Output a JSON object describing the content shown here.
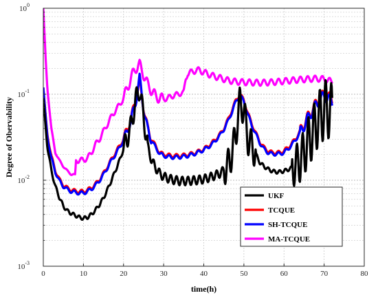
{
  "chart_data": {
    "type": "line",
    "title": "",
    "xlabel": "time(h)",
    "ylabel": "Degree of Obervability",
    "xlim": [
      0,
      80
    ],
    "ylim": [
      0.001,
      1
    ],
    "y_scale": "log",
    "grid": true,
    "legend_position": "bottom-right",
    "x_ticks": [
      0,
      10,
      20,
      30,
      40,
      50,
      60,
      70,
      80
    ],
    "x_tick_labels": [
      "0",
      "10",
      "20",
      "30",
      "40",
      "50",
      "60",
      "70",
      "80"
    ],
    "y_ticks": [
      1,
      0.1,
      0.01,
      0.001
    ],
    "y_tick_labels": [
      {
        "base": "10",
        "exp": "0"
      },
      {
        "base": "10",
        "exp": "-1"
      },
      {
        "base": "10",
        "exp": "-2"
      },
      {
        "base": "10",
        "exp": "-3"
      }
    ],
    "series": [
      {
        "name": "UKF",
        "color": "#000000",
        "width": 3.2,
        "x": [
          0,
          0.5,
          1,
          2,
          3,
          4,
          5,
          6,
          7,
          8,
          9,
          10,
          11,
          12,
          13,
          14,
          15,
          16,
          17,
          18,
          19,
          20,
          21,
          22,
          23,
          24,
          25,
          26,
          27,
          28,
          29,
          30,
          32,
          34,
          36,
          38,
          40,
          42,
          44,
          45,
          46,
          47,
          48,
          49,
          50,
          51,
          52,
          53,
          54,
          55,
          56,
          57,
          58,
          59,
          60,
          61,
          62,
          63,
          64,
          65,
          66,
          67,
          68,
          69,
          70,
          71,
          72
        ],
        "y": [
          0.09,
          0.045,
          0.025,
          0.013,
          0.0085,
          0.0063,
          0.005,
          0.0044,
          0.0041,
          0.0039,
          0.0037,
          0.0036,
          0.0037,
          0.004,
          0.0045,
          0.0052,
          0.0062,
          0.0078,
          0.01,
          0.013,
          0.017,
          0.023,
          0.032,
          0.045,
          0.085,
          0.115,
          0.055,
          0.025,
          0.017,
          0.014,
          0.012,
          0.011,
          0.0102,
          0.0098,
          0.0098,
          0.01,
          0.0103,
          0.011,
          0.012,
          0.013,
          0.015,
          0.02,
          0.035,
          0.082,
          0.065,
          0.03,
          0.025,
          0.02,
          0.016,
          0.0145,
          0.0135,
          0.0128,
          0.0125,
          0.0125,
          0.0128,
          0.0133,
          0.014,
          0.015,
          0.017,
          0.021,
          0.028,
          0.034,
          0.045,
          0.055,
          0.065,
          0.07,
          0.055
        ]
      },
      {
        "name": "TCQUE",
        "color": "#ff0000",
        "width": 3.2,
        "x": [
          0,
          0.5,
          1,
          2,
          3,
          4,
          5,
          6,
          7,
          8,
          9,
          10,
          11,
          12,
          13,
          14,
          15,
          16,
          17,
          18,
          19,
          20,
          21,
          22,
          23,
          24,
          25,
          26,
          27,
          28,
          29,
          30,
          32,
          34,
          36,
          38,
          40,
          42,
          44,
          45,
          46,
          47,
          48,
          49,
          50,
          51,
          52,
          53,
          54,
          55,
          56,
          57,
          58,
          59,
          60,
          61,
          62,
          63,
          64,
          65,
          66,
          67,
          68,
          69,
          70,
          71,
          72
        ],
        "y": [
          0.12,
          0.06,
          0.035,
          0.019,
          0.013,
          0.0102,
          0.0088,
          0.0081,
          0.0077,
          0.0075,
          0.0074,
          0.0074,
          0.0077,
          0.0082,
          0.009,
          0.0102,
          0.012,
          0.0145,
          0.0175,
          0.021,
          0.025,
          0.03,
          0.04,
          0.055,
          0.085,
          0.14,
          0.07,
          0.04,
          0.03,
          0.025,
          0.021,
          0.02,
          0.0193,
          0.0193,
          0.0198,
          0.021,
          0.023,
          0.027,
          0.034,
          0.04,
          0.05,
          0.065,
          0.085,
          0.1,
          0.085,
          0.06,
          0.045,
          0.035,
          0.028,
          0.024,
          0.022,
          0.021,
          0.021,
          0.021,
          0.022,
          0.024,
          0.027,
          0.031,
          0.037,
          0.045,
          0.055,
          0.065,
          0.078,
          0.09,
          0.1,
          0.095,
          0.085
        ]
      },
      {
        "name": "SH-TCQUE",
        "color": "#0000ff",
        "width": 3.2,
        "x": [
          0,
          0.5,
          1,
          2,
          3,
          4,
          5,
          6,
          7,
          8,
          9,
          10,
          11,
          12,
          13,
          14,
          15,
          16,
          17,
          18,
          19,
          20,
          21,
          22,
          23,
          24,
          25,
          26,
          27,
          28,
          29,
          30,
          32,
          34,
          36,
          38,
          40,
          42,
          44,
          45,
          46,
          47,
          48,
          49,
          50,
          51,
          52,
          53,
          54,
          55,
          56,
          57,
          58,
          59,
          60,
          61,
          62,
          63,
          64,
          65,
          66,
          67,
          68,
          69,
          70,
          71,
          72
        ],
        "y": [
          0.12,
          0.058,
          0.033,
          0.018,
          0.0125,
          0.0098,
          0.0085,
          0.0078,
          0.0074,
          0.0072,
          0.0071,
          0.0071,
          0.0074,
          0.0079,
          0.0087,
          0.0099,
          0.0116,
          0.014,
          0.017,
          0.02,
          0.024,
          0.029,
          0.038,
          0.053,
          0.08,
          0.155,
          0.068,
          0.039,
          0.029,
          0.024,
          0.0205,
          0.0192,
          0.0185,
          0.0186,
          0.0192,
          0.0205,
          0.0225,
          0.026,
          0.033,
          0.039,
          0.048,
          0.062,
          0.082,
          0.098,
          0.082,
          0.058,
          0.043,
          0.034,
          0.027,
          0.023,
          0.021,
          0.0202,
          0.0202,
          0.0203,
          0.021,
          0.023,
          0.026,
          0.03,
          0.036,
          0.043,
          0.053,
          0.063,
          0.075,
          0.087,
          0.096,
          0.09,
          0.08
        ]
      },
      {
        "name": "MA-TCQUE",
        "color": "#ff00ff",
        "width": 3.2,
        "x": [
          0,
          0.3,
          0.6,
          1,
          2,
          3,
          4,
          5,
          6,
          7,
          8,
          8.1,
          9,
          10,
          11,
          12,
          13,
          14,
          15,
          16,
          17,
          18,
          19,
          20,
          21,
          22,
          23,
          24,
          25,
          26,
          27,
          28,
          29,
          30,
          31,
          32,
          33,
          34,
          35,
          35.5,
          36,
          37,
          38,
          39,
          40,
          42,
          44,
          46,
          48,
          50,
          52,
          54,
          56,
          58,
          60,
          62,
          64,
          66,
          68,
          70,
          72
        ],
        "y": [
          1,
          0.5,
          0.25,
          0.12,
          0.04,
          0.021,
          0.017,
          0.0145,
          0.0128,
          0.0117,
          0.0115,
          0.017,
          0.017,
          0.0172,
          0.018,
          0.021,
          0.026,
          0.03,
          0.037,
          0.045,
          0.055,
          0.065,
          0.075,
          0.09,
          0.12,
          0.16,
          0.2,
          0.22,
          0.17,
          0.13,
          0.11,
          0.095,
          0.09,
          0.088,
          0.09,
          0.095,
          0.098,
          0.102,
          0.104,
          0.15,
          0.175,
          0.18,
          0.19,
          0.19,
          0.18,
          0.165,
          0.155,
          0.145,
          0.14,
          0.138,
          0.137,
          0.136,
          0.137,
          0.139,
          0.142,
          0.145,
          0.148,
          0.15,
          0.152,
          0.15,
          0.14
        ]
      }
    ]
  }
}
